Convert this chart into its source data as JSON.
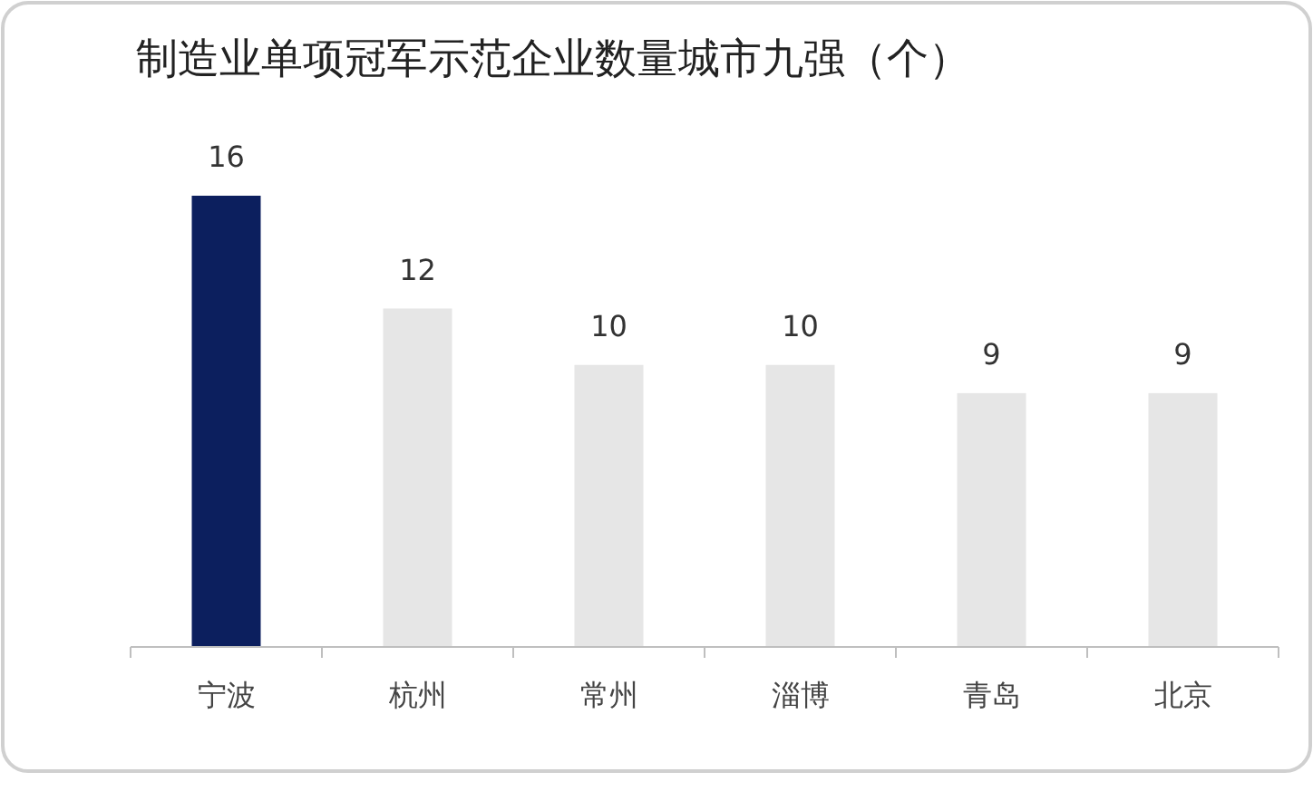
{
  "chart_data": {
    "type": "bar",
    "title": "制造业单项冠军示范企业数量城市九强（个）",
    "categories": [
      "宁波",
      "杭州",
      "常州",
      "淄博",
      "青岛",
      "北京"
    ],
    "values": [
      16,
      12,
      10,
      10,
      9,
      9
    ],
    "colors": [
      "#0c1f5e",
      "#e6e6e6",
      "#e6e6e6",
      "#e6e6e6",
      "#e6e6e6",
      "#e6e6e6"
    ],
    "data_labels": true
  }
}
